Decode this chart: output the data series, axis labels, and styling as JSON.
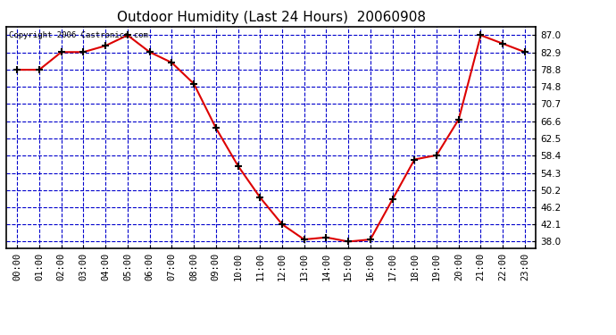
{
  "title": "Outdoor Humidity (Last 24 Hours)  20060908",
  "copyright_text": "Copyright 2006 Castronics.com",
  "x_labels": [
    "00:00",
    "01:00",
    "02:00",
    "03:00",
    "04:00",
    "05:00",
    "06:00",
    "07:00",
    "08:00",
    "09:00",
    "10:00",
    "11:00",
    "12:00",
    "13:00",
    "14:00",
    "15:00",
    "16:00",
    "17:00",
    "18:00",
    "19:00",
    "20:00",
    "21:00",
    "22:00",
    "23:00"
  ],
  "y_values": [
    78.8,
    78.8,
    83.0,
    83.0,
    84.5,
    87.0,
    83.0,
    80.5,
    75.5,
    65.0,
    56.0,
    48.5,
    42.1,
    38.5,
    39.0,
    38.0,
    38.5,
    48.0,
    57.5,
    58.5,
    67.0,
    87.0,
    85.0,
    83.0
  ],
  "y_ticks": [
    38.0,
    42.1,
    46.2,
    50.2,
    54.3,
    58.4,
    62.5,
    66.6,
    70.7,
    74.8,
    78.8,
    82.9,
    87.0
  ],
  "ylim": [
    36.5,
    89.0
  ],
  "line_color": "#dd0000",
  "marker_edge_color": "#000000",
  "fig_bg_color": "#ffffff",
  "plot_bg_color": "#ffffff",
  "grid_color": "#0000cc",
  "border_color": "#000000",
  "title_fontsize": 11,
  "tick_fontsize": 7.5,
  "copyright_fontsize": 6.5
}
